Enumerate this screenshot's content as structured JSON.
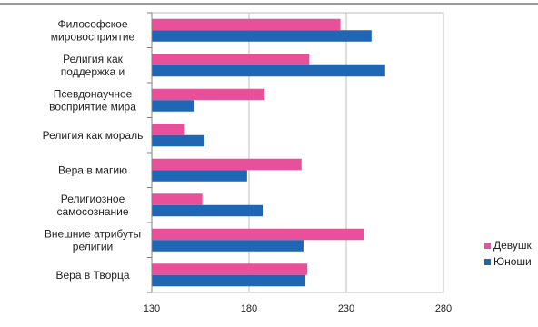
{
  "chart_data": {
    "type": "bar",
    "orientation": "horizontal",
    "categories": [
      [
        "Философское",
        "мировосприятие"
      ],
      [
        "Религия как",
        "поддержка и"
      ],
      [
        "Псевдонаучное",
        "восприятие мира"
      ],
      [
        "Религия как мораль"
      ],
      [
        "Вера в магию"
      ],
      [
        "Религиозное",
        "самосознание"
      ],
      [
        "Внешние атрибуты",
        "религии"
      ],
      [
        "Вера в Творца"
      ]
    ],
    "series": [
      {
        "name": "Девушк",
        "color": "#e8509a",
        "values": [
          227,
          211,
          188,
          147,
          207,
          156,
          239,
          210
        ]
      },
      {
        "name": "Юноши",
        "color": "#1f66b4",
        "values": [
          243,
          250,
          152,
          157,
          179,
          187,
          208,
          209
        ]
      }
    ],
    "xlim": [
      130,
      280
    ],
    "xticks": [
      130,
      180,
      230,
      280
    ],
    "grid": true,
    "legend": "right"
  }
}
